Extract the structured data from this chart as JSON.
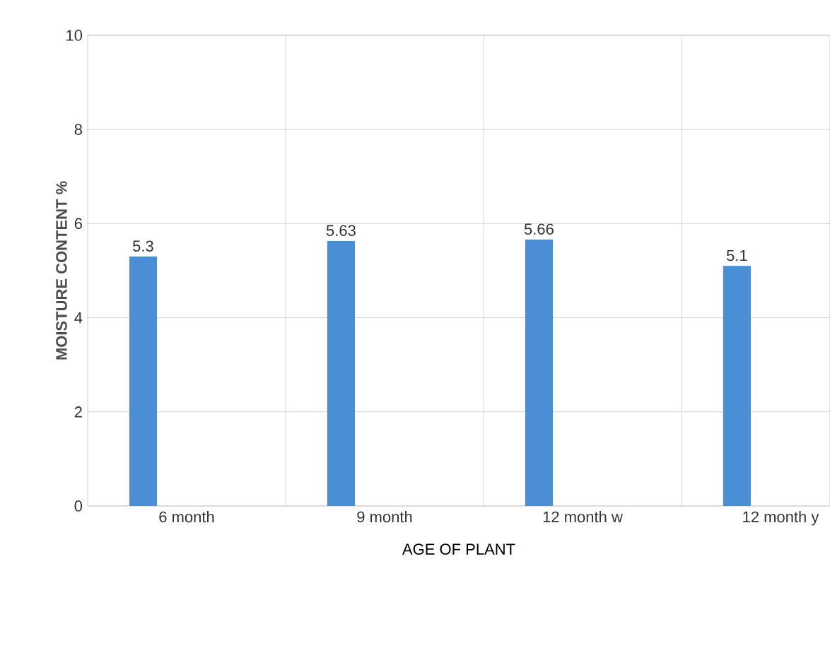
{
  "chart_data": {
    "type": "bar",
    "xlabel": "AGE OF PLANT",
    "ylabel": "MOISTURE CONTENT %",
    "categories": [
      "6 month",
      "9 month",
      "12 month w",
      "12 month y"
    ],
    "values": [
      5.3,
      5.63,
      5.66,
      5.1
    ],
    "color": "#4a8fd6",
    "ylim": [
      0,
      10
    ],
    "yticks": [
      0,
      2,
      4,
      6,
      8,
      10
    ],
    "grid": true,
    "data_labels": true
  }
}
